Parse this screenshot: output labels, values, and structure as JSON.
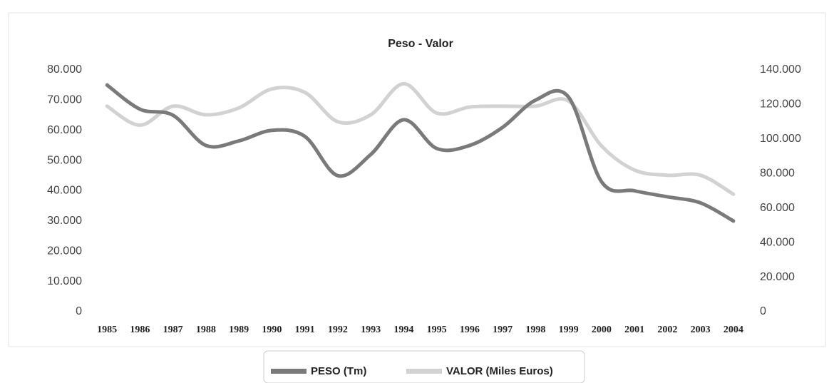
{
  "chart_data": {
    "type": "line",
    "title": "Peso - Valor",
    "categories": [
      "1985",
      "1986",
      "1987",
      "1988",
      "1989",
      "1990",
      "1991",
      "1992",
      "1993",
      "1994",
      "1995",
      "1996",
      "1997",
      "1998",
      "1999",
      "2000",
      "2001",
      "2002",
      "2003",
      "2004"
    ],
    "series": [
      {
        "name": "PESO (Tm)",
        "color": "#7a7a7a",
        "values": [
          75000,
          67000,
          65000,
          55000,
          56500,
          60000,
          58000,
          45000,
          52000,
          63500,
          54000,
          55000,
          61000,
          70000,
          71000,
          43000,
          40000,
          38000,
          36000,
          30000
        ]
      },
      {
        "name": "VALOR (Miles Euros)",
        "color": "#d2d2d2",
        "axis": "y2",
        "values": [
          119000,
          108000,
          119000,
          114000,
          118000,
          129000,
          127000,
          110000,
          114000,
          132000,
          115000,
          118500,
          119000,
          119000,
          122000,
          96000,
          82000,
          79000,
          79000,
          68000
        ]
      }
    ],
    "ylim": [
      0,
      80000
    ],
    "yticks": [
      {
        "value": 0,
        "label": "0"
      },
      {
        "value": 10000,
        "label": "10.000"
      },
      {
        "value": 20000,
        "label": "20.000"
      },
      {
        "value": 30000,
        "label": "30.000"
      },
      {
        "value": 40000,
        "label": "40.000"
      },
      {
        "value": 50000,
        "label": "50.000"
      },
      {
        "value": 60000,
        "label": "60.000"
      },
      {
        "value": 70000,
        "label": "70.000"
      },
      {
        "value": 80000,
        "label": "80.000"
      }
    ],
    "y2lim": [
      0,
      140000
    ],
    "y2ticks": [
      {
        "value": 0,
        "label": "0"
      },
      {
        "value": 20000,
        "label": "20.000"
      },
      {
        "value": 40000,
        "label": "40.000"
      },
      {
        "value": 60000,
        "label": "60.000"
      },
      {
        "value": 80000,
        "label": "80.000"
      },
      {
        "value": 100000,
        "label": "100.000"
      },
      {
        "value": 120000,
        "label": "120.000"
      },
      {
        "value": 140000,
        "label": "140.000"
      }
    ],
    "legend": "bottom"
  }
}
